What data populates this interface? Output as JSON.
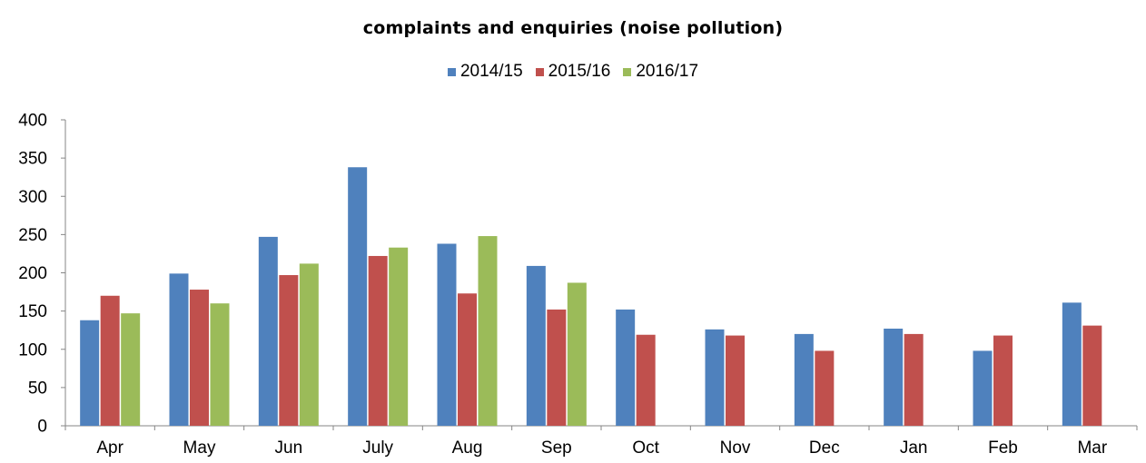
{
  "chart_data": {
    "type": "bar",
    "title": "complaints and enquiries (noise pollution)",
    "xlabel": "",
    "ylabel": "",
    "categories": [
      "Apr",
      "May",
      "Jun",
      "July",
      "Aug",
      "Sep",
      "Oct",
      "Nov",
      "Dec",
      "Jan",
      "Feb",
      "Mar"
    ],
    "series": [
      {
        "name": "2014/15",
        "color": "#4f81bd",
        "values": [
          138,
          199,
          247,
          338,
          238,
          209,
          152,
          126,
          120,
          127,
          98,
          161
        ]
      },
      {
        "name": "2015/16",
        "color": "#c0504d",
        "values": [
          170,
          178,
          197,
          222,
          173,
          152,
          119,
          118,
          98,
          120,
          118,
          131
        ]
      },
      {
        "name": "2016/17",
        "color": "#9bbb59",
        "values": [
          147,
          160,
          212,
          233,
          248,
          187,
          null,
          null,
          null,
          null,
          null,
          null
        ]
      }
    ],
    "ylim": [
      0,
      400
    ],
    "yticks": [
      0,
      50,
      100,
      150,
      200,
      250,
      300,
      350,
      400
    ],
    "grid": false,
    "legend_position": "top"
  }
}
